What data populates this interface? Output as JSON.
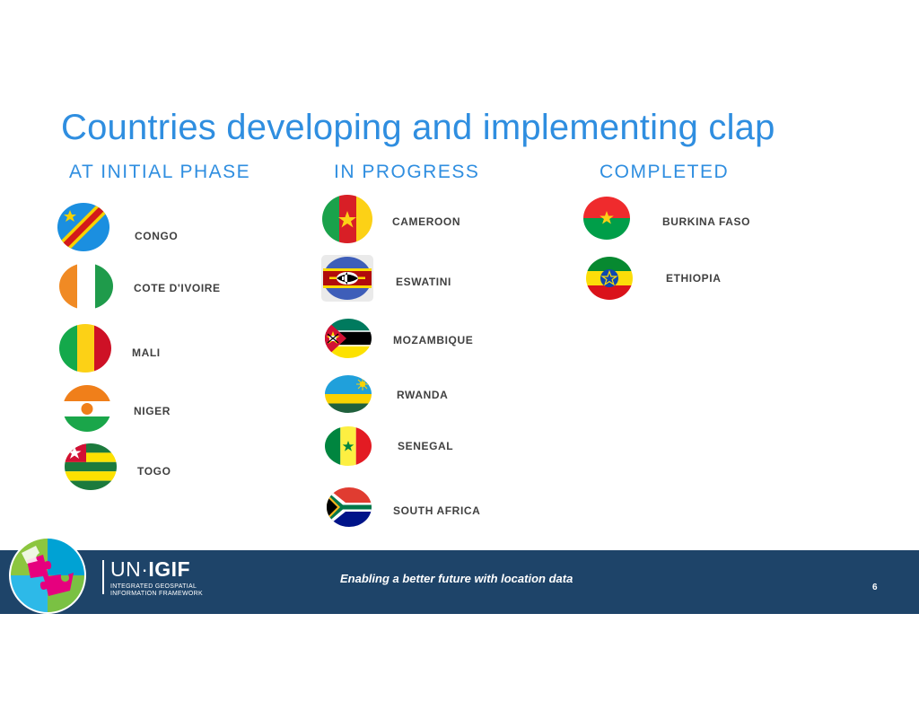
{
  "slide": {
    "title": "Countries developing and implementing clap",
    "page_number": "6"
  },
  "columns": {
    "initial": {
      "heading": "AT INITIAL PHASE",
      "countries": [
        "CONGO",
        "COTE D'IVOIRE",
        "MALI",
        "NIGER",
        "TOGO"
      ]
    },
    "progress": {
      "heading": "IN PROGRESS",
      "countries": [
        "CAMEROON",
        "ESWATINI",
        "MOZAMBIQUE",
        "RWANDA",
        "SENEGAL",
        "SOUTH AFRICA"
      ]
    },
    "completed": {
      "heading": "COMPLETED",
      "countries": [
        "BURKINA FASO",
        "ETHIOPIA"
      ]
    }
  },
  "footer": {
    "tagline": "Enabling a better future with location data",
    "logo_un": "UN·",
    "logo_igif": "IGIF",
    "logo_sub_line1": "INTEGRATED GEOSPATIAL",
    "logo_sub_line2": "INFORMATION FRAMEWORK"
  },
  "colors": {
    "title_blue": "#2f8ee0",
    "footer_navy": "#1e4469"
  },
  "icons": {
    "flags": [
      "congo-flag-icon",
      "cote-divoire-flag-icon",
      "mali-flag-icon",
      "niger-flag-icon",
      "togo-flag-icon",
      "cameroon-flag-icon",
      "eswatini-flag-icon",
      "mozambique-flag-icon",
      "rwanda-flag-icon",
      "senegal-flag-icon",
      "south-africa-flag-icon",
      "burkina-faso-flag-icon",
      "ethiopia-flag-icon"
    ],
    "logo": "puzzle-globe-logo"
  }
}
